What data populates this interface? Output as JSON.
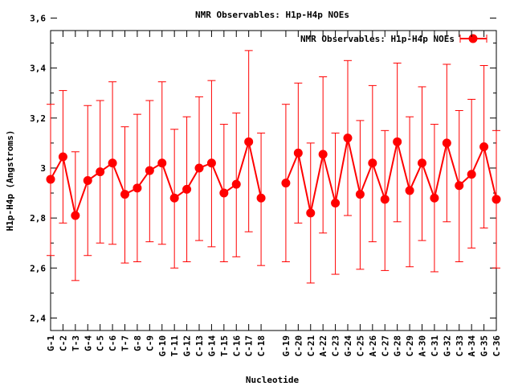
{
  "chart_data": {
    "type": "line",
    "title": "NMR Observables: H1p-H4p NOEs",
    "xlabel": "Nucleotide",
    "ylabel": "H1p-H4p (Angstroms)",
    "ylim": [
      2.35,
      3.55
    ],
    "yticks": [
      2.4,
      2.6,
      2.8,
      3.0,
      3.2,
      3.4,
      3.6
    ],
    "ytick_labels": [
      "2,4",
      "2,6",
      "2,8",
      "3",
      "3,2",
      "3,4",
      "3,6"
    ],
    "grid": false,
    "legend": {
      "position": "top-right",
      "entries": [
        "NMR Observables: H1p-H4p NOEs"
      ]
    },
    "color": "#ff0000",
    "categories": [
      "G-1",
      "C-2",
      "T-3",
      "G-4",
      "C-5",
      "C-6",
      "T-7",
      "G-8",
      "C-9",
      "G-10",
      "T-11",
      "G-12",
      "C-13",
      "G-14",
      "T-15",
      "C-16",
      "C-17",
      "C-18",
      "G-19",
      "C-20",
      "C-21",
      "A-22",
      "C-23",
      "G-24",
      "C-25",
      "A-26",
      "C-27",
      "G-28",
      "C-29",
      "A-30",
      "C-31",
      "G-32",
      "C-33",
      "A-34",
      "G-35",
      "C-36"
    ],
    "x": [
      1,
      2,
      3,
      4,
      5,
      6,
      7,
      8,
      9,
      10,
      11,
      12,
      13,
      14,
      15,
      16,
      17,
      18,
      20,
      21,
      22,
      23,
      24,
      25,
      26,
      27,
      28,
      29,
      30,
      31,
      32,
      33,
      34,
      35,
      36,
      37
    ],
    "xlim": [
      1,
      37
    ],
    "series": [
      {
        "name": "NMR Observables: H1p-H4p NOEs",
        "values": [
          2.955,
          3.045,
          2.81,
          2.95,
          2.985,
          3.02,
          2.895,
          2.92,
          2.99,
          3.02,
          2.88,
          2.915,
          3.0,
          3.02,
          2.9,
          2.935,
          3.105,
          2.88,
          2.94,
          3.06,
          2.82,
          3.055,
          2.86,
          3.12,
          2.895,
          3.02,
          2.875,
          3.105,
          2.91,
          3.02,
          2.88,
          3.1,
          2.93,
          2.975,
          3.085,
          2.875
        ],
        "err_low": [
          2.65,
          2.78,
          2.55,
          2.65,
          2.7,
          2.695,
          2.62,
          2.625,
          2.705,
          2.695,
          2.6,
          2.625,
          2.71,
          2.685,
          2.625,
          2.645,
          2.745,
          2.61,
          2.625,
          2.78,
          2.54,
          2.74,
          2.575,
          2.81,
          2.595,
          2.705,
          2.59,
          2.785,
          2.605,
          2.71,
          2.585,
          2.785,
          2.625,
          2.68,
          2.76,
          2.6
        ],
        "err_high": [
          3.255,
          3.31,
          3.065,
          3.25,
          3.27,
          3.345,
          3.165,
          3.215,
          3.27,
          3.345,
          3.155,
          3.205,
          3.285,
          3.35,
          3.175,
          3.22,
          3.47,
          3.14,
          3.255,
          3.34,
          3.1,
          3.365,
          3.14,
          3.43,
          3.19,
          3.33,
          3.15,
          3.42,
          3.205,
          3.325,
          3.175,
          3.415,
          3.23,
          3.275,
          3.41,
          3.15
        ]
      }
    ]
  }
}
